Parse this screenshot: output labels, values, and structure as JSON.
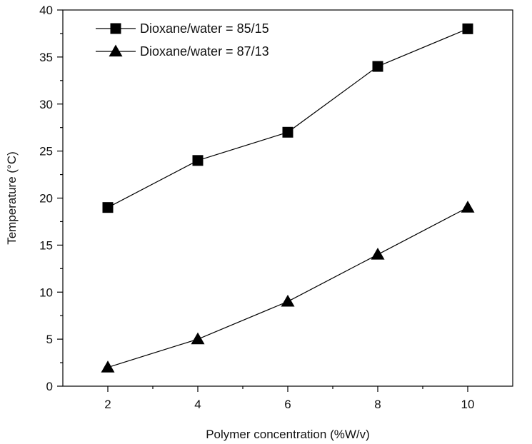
{
  "chart_data": {
    "type": "line",
    "xlabel": "Polymer concentration (%W/v)",
    "ylabel": "Temperature (°C)",
    "x": [
      2,
      4,
      6,
      8,
      10
    ],
    "xticks": [
      "2",
      "4",
      "6",
      "8",
      "10"
    ],
    "yticks": [
      "0",
      "5",
      "10",
      "15",
      "20",
      "25",
      "30",
      "35",
      "40"
    ],
    "xlim": [
      1,
      11
    ],
    "ylim": [
      0,
      40
    ],
    "grid": false,
    "legend_position": "top-left",
    "series": [
      {
        "name": "Dioxane/water = 85/15",
        "marker": "square",
        "color": "#000000",
        "values": [
          19,
          24,
          27,
          34,
          38
        ]
      },
      {
        "name": "Dioxane/water = 87/13",
        "marker": "triangle",
        "color": "#000000",
        "values": [
          2,
          5,
          9,
          14,
          19
        ]
      }
    ]
  }
}
